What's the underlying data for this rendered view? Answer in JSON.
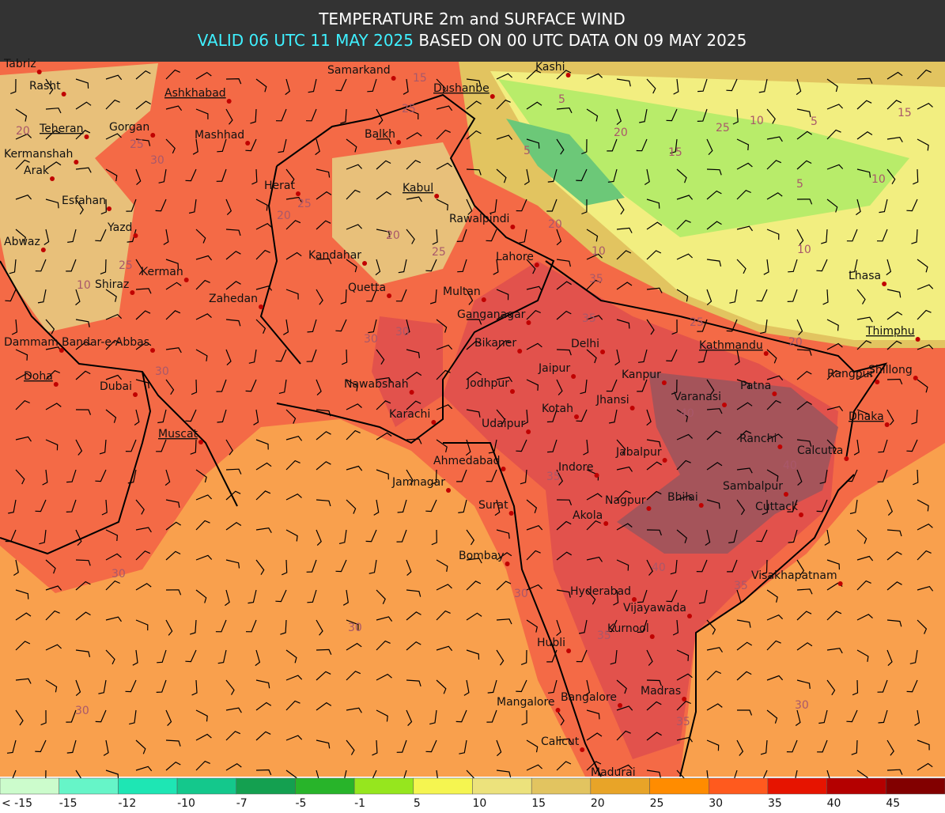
{
  "header": {
    "title": "TEMPERATURE 2m and SURFACE WIND",
    "valid": "VALID 06 UTC 11 MAY 2025",
    "based": "BASED ON 00 UTC DATA ON 09 MAY 2025"
  },
  "cities": [
    "Tabriz",
    "Rasht",
    "Teheran",
    "Gorgan",
    "Kermanshah",
    "Arak",
    "Esfahan",
    "Yazd",
    "Abwaz",
    "Shiraz",
    "Kerman",
    "Dammam",
    "Bandar-e-Abbas",
    "Doha",
    "Dubai",
    "Muscat",
    "Ashkhabad",
    "Mashhad",
    "Herat",
    "Zahedan",
    "Kandahar",
    "Quetta",
    "Samarkand",
    "Balkh",
    "Dushanbe",
    "Kabul",
    "Rawalpindi",
    "Lahore",
    "Multan",
    "Ganganagar",
    "Bikaner",
    "Delhi",
    "Jaipur",
    "Jodhpur",
    "Nawabshah",
    "Karachi",
    "Kotah",
    "Jhansi",
    "Kanpur",
    "Varanasi",
    "Patna",
    "Kathmandu",
    "Udaipur",
    "Ahmedabad",
    "Jamnagar",
    "Indore",
    "Jabalpur",
    "Ranchi",
    "Calcutta",
    "Dhaka",
    "Shillong",
    "Rangpur",
    "Thimphu",
    "Lhasa",
    "Kashi",
    "Surat",
    "Nagpur",
    "Bhilai",
    "Sambalpur",
    "Cuttack",
    "Akola",
    "Bombay",
    "Hyderabad",
    "Vijayawada",
    "Visakhapatnam",
    "Kurnool",
    "Hubli",
    "Madras",
    "Bangalore",
    "Mangalore",
    "Calicut",
    "Madurai"
  ],
  "contour_labels": [
    "20",
    "25",
    "30",
    "25",
    "10",
    "30",
    "15",
    "25",
    "20",
    "25",
    "20",
    "25",
    "30",
    "30",
    "5",
    "20",
    "15",
    "25",
    "10",
    "5",
    "15",
    "10",
    "5",
    "20",
    "10",
    "35",
    "35",
    "25",
    "20",
    "40",
    "40",
    "35",
    "40",
    "35",
    "35",
    "30",
    "30",
    "30",
    "35",
    "30",
    "30",
    "5",
    "10"
  ],
  "legend": [
    {
      "label": "< -15",
      "color": "#ccfccc"
    },
    {
      "label": "-15",
      "color": "#66f5c8"
    },
    {
      "label": "-12",
      "color": "#1ee6b4"
    },
    {
      "label": "-10",
      "color": "#14c88c"
    },
    {
      "label": "-7",
      "color": "#14a050"
    },
    {
      "label": "-5",
      "color": "#28b42a"
    },
    {
      "label": "-1",
      "color": "#96e61e"
    },
    {
      "label": "5",
      "color": "#f5f550"
    },
    {
      "label": "10",
      "color": "#ece27c"
    },
    {
      "label": "15",
      "color": "#e2c460"
    },
    {
      "label": "20",
      "color": "#e8a428"
    },
    {
      "label": "25",
      "color": "#ff8c00"
    },
    {
      "label": "30",
      "color": "#ff5a1e"
    },
    {
      "label": "35",
      "color": "#e61400"
    },
    {
      "label": "40",
      "color": "#b40000"
    },
    {
      "label": "45",
      "color": "#820000"
    }
  ]
}
